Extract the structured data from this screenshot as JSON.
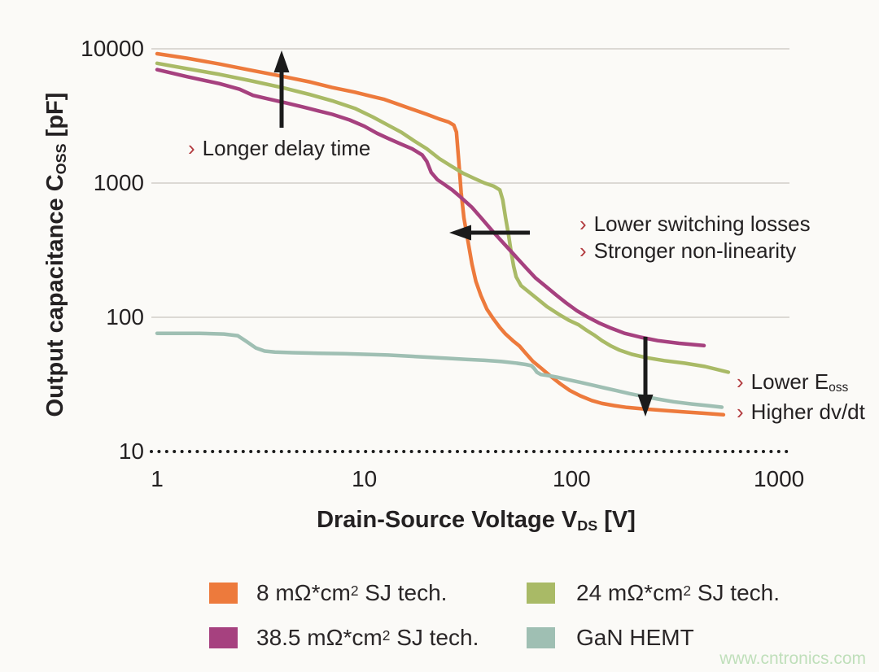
{
  "page": {
    "background": "#FBFAF7",
    "watermark": "www.cntronics.com",
    "watermark_color": "#BFDFBA"
  },
  "chart_data": {
    "type": "line",
    "title": "",
    "xlabel": "Drain-Source Voltage V_DS [V]",
    "ylabel": "Output capacitance C_OSS [pF]",
    "x_axis": {
      "pre": "Drain-Source Voltage V",
      "sub": "DS",
      "post": " [V]"
    },
    "y_axis": {
      "pre": "Output capacitance C",
      "sub": "OSS",
      "post": " [pF]"
    },
    "x_scale": "log",
    "y_scale": "log",
    "xlim": [
      1,
      1000
    ],
    "ylim": [
      10,
      10000
    ],
    "x_ticks": [
      1,
      10,
      100,
      1000
    ],
    "y_ticks": [
      10000,
      1000,
      100,
      10
    ],
    "y_gridlines": [
      10000,
      1000,
      100
    ],
    "dotted_baseline": 10,
    "grid_color": "#DCD9D4",
    "dot_color": "#1B1B1B",
    "legend_position": "bottom",
    "series": [
      {
        "name": "8 mΩ*cm² SJ tech.",
        "color": "#ED7A3C",
        "points": [
          [
            1,
            9200
          ],
          [
            1.4,
            8500
          ],
          [
            2,
            7700
          ],
          [
            2.8,
            6950
          ],
          [
            4,
            6250
          ],
          [
            5.5,
            5650
          ],
          [
            7,
            5150
          ],
          [
            9,
            4750
          ],
          [
            11,
            4400
          ],
          [
            12.5,
            4200
          ],
          [
            14,
            3950
          ],
          [
            17,
            3550
          ],
          [
            20,
            3250
          ],
          [
            23,
            3000
          ],
          [
            25.5,
            2850
          ],
          [
            27,
            2700
          ],
          [
            27.8,
            2400
          ],
          [
            28.5,
            1500
          ],
          [
            29.3,
            850
          ],
          [
            30.2,
            550
          ],
          [
            31.5,
            380
          ],
          [
            33,
            250
          ],
          [
            34.5,
            185
          ],
          [
            36.5,
            145
          ],
          [
            39,
            115
          ],
          [
            42,
            97
          ],
          [
            45,
            84
          ],
          [
            48,
            75
          ],
          [
            52,
            67
          ],
          [
            56,
            61
          ],
          [
            60,
            54
          ],
          [
            65,
            47
          ],
          [
            71,
            42
          ],
          [
            79,
            36.5
          ],
          [
            88,
            32
          ],
          [
            98,
            28.5
          ],
          [
            110,
            26
          ],
          [
            125,
            24
          ],
          [
            140,
            22.8
          ],
          [
            160,
            22
          ],
          [
            185,
            21.3
          ],
          [
            220,
            20.8
          ],
          [
            270,
            20.3
          ],
          [
            340,
            19.8
          ],
          [
            430,
            19.3
          ],
          [
            540,
            18.8
          ]
        ]
      },
      {
        "name": "24 mΩ*cm² SJ tech.",
        "color": "#A9BA66",
        "points": [
          [
            1,
            7800
          ],
          [
            1.4,
            7100
          ],
          [
            2,
            6450
          ],
          [
            2.8,
            5800
          ],
          [
            4,
            5150
          ],
          [
            5.5,
            4550
          ],
          [
            7,
            4100
          ],
          [
            9,
            3600
          ],
          [
            11,
            3100
          ],
          [
            13,
            2700
          ],
          [
            15,
            2400
          ],
          [
            17.5,
            2050
          ],
          [
            20,
            1800
          ],
          [
            23,
            1520
          ],
          [
            26,
            1350
          ],
          [
            30,
            1180
          ],
          [
            34,
            1080
          ],
          [
            38,
            1000
          ],
          [
            42,
            950
          ],
          [
            45,
            890
          ],
          [
            46.5,
            750
          ],
          [
            48,
            550
          ],
          [
            49.5,
            420
          ],
          [
            51,
            310
          ],
          [
            52.5,
            240
          ],
          [
            54,
            200
          ],
          [
            57,
            172
          ],
          [
            62,
            155
          ],
          [
            68,
            138
          ],
          [
            76,
            120
          ],
          [
            86,
            106
          ],
          [
            97,
            95
          ],
          [
            108,
            88
          ],
          [
            118,
            80
          ],
          [
            128,
            74
          ],
          [
            140,
            67
          ],
          [
            155,
            61
          ],
          [
            170,
            57
          ],
          [
            195,
            53
          ],
          [
            230,
            50
          ],
          [
            280,
            47.5
          ],
          [
            350,
            45.5
          ],
          [
            440,
            43
          ],
          [
            570,
            39
          ]
        ]
      },
      {
        "name": "38.5 mΩ*cm² SJ tech.",
        "color": "#A6417F",
        "points": [
          [
            1,
            7000
          ],
          [
            1.4,
            6200
          ],
          [
            2,
            5500
          ],
          [
            2.5,
            5000
          ],
          [
            2.9,
            4500
          ],
          [
            3.4,
            4250
          ],
          [
            4.2,
            3950
          ],
          [
            5,
            3700
          ],
          [
            6,
            3450
          ],
          [
            7,
            3250
          ],
          [
            8.5,
            2950
          ],
          [
            10,
            2650
          ],
          [
            11.5,
            2350
          ],
          [
            13,
            2150
          ],
          [
            15,
            1950
          ],
          [
            17,
            1800
          ],
          [
            19,
            1620
          ],
          [
            20,
            1450
          ],
          [
            21,
            1200
          ],
          [
            22.5,
            1060
          ],
          [
            24,
            990
          ],
          [
            26.5,
            890
          ],
          [
            29,
            790
          ],
          [
            33,
            660
          ],
          [
            37,
            540
          ],
          [
            42,
            430
          ],
          [
            47,
            355
          ],
          [
            53,
            290
          ],
          [
            60,
            235
          ],
          [
            67,
            196
          ],
          [
            75,
            170
          ],
          [
            84,
            147
          ],
          [
            94,
            128
          ],
          [
            106,
            112
          ],
          [
            120,
            100
          ],
          [
            135,
            91
          ],
          [
            155,
            83
          ],
          [
            180,
            76
          ],
          [
            215,
            71
          ],
          [
            260,
            67
          ],
          [
            330,
            64
          ],
          [
            435,
            61.5
          ]
        ]
      },
      {
        "name": "GaN HEMT",
        "color": "#9FBFB3",
        "points": [
          [
            1,
            76
          ],
          [
            1.6,
            76
          ],
          [
            2.1,
            75
          ],
          [
            2.45,
            73
          ],
          [
            2.7,
            66
          ],
          [
            3,
            59
          ],
          [
            3.3,
            56
          ],
          [
            3.7,
            55
          ],
          [
            4.5,
            54.5
          ],
          [
            6,
            54
          ],
          [
            8,
            53.5
          ],
          [
            10,
            53
          ],
          [
            13,
            52.3
          ],
          [
            16,
            51.5
          ],
          [
            20,
            50.5
          ],
          [
            25,
            49.5
          ],
          [
            31,
            48.6
          ],
          [
            38,
            47.8
          ],
          [
            46,
            46.8
          ],
          [
            54,
            45.6
          ],
          [
            60,
            44.5
          ],
          [
            64,
            43.6
          ],
          [
            66,
            41.5
          ],
          [
            68,
            39
          ],
          [
            71,
            37.5
          ],
          [
            77,
            36.8
          ],
          [
            85,
            35.8
          ],
          [
            96,
            34.3
          ],
          [
            110,
            32.8
          ],
          [
            125,
            31.3
          ],
          [
            145,
            29.7
          ],
          [
            165,
            28.4
          ],
          [
            190,
            27
          ],
          [
            220,
            25.8
          ],
          [
            260,
            24.6
          ],
          [
            310,
            23.5
          ],
          [
            380,
            22.6
          ],
          [
            460,
            21.9
          ],
          [
            530,
            21.4
          ]
        ]
      }
    ]
  },
  "legend": {
    "items": [
      {
        "pre": "8 mΩ*cm",
        "sup": "2",
        "post": " SJ tech.",
        "color": "#ED7A3C"
      },
      {
        "pre": "24 mΩ*cm",
        "sup": "2",
        "post": " SJ tech.",
        "color": "#A9BA66"
      },
      {
        "pre": "38.5 mΩ*cm",
        "sup": "2",
        "post": " SJ tech.",
        "color": "#A6417F"
      },
      {
        "pre": "GaN HEMT",
        "sup": "",
        "post": "",
        "color": "#9FBFB3"
      }
    ]
  },
  "annotations": {
    "bullet": "›",
    "bullet_color": "#B23A3E",
    "delay_text": "Longer delay time",
    "switching_line1": "Lower switching losses",
    "switching_line2": "Stronger non-linearity",
    "eoss_pre": "Lower E",
    "eoss_sub": "oss",
    "dvdt_text": "Higher dv/dt",
    "arrows": [
      {
        "direction": "up",
        "x": 346,
        "y_from": 157,
        "y_to": 62
      },
      {
        "direction": "left",
        "y": 286,
        "x_from": 651,
        "x_to": 552
      },
      {
        "direction": "down",
        "x": 793,
        "y_from": 414,
        "y_to": 512
      }
    ],
    "arrow_color": "#1B1B1B"
  }
}
